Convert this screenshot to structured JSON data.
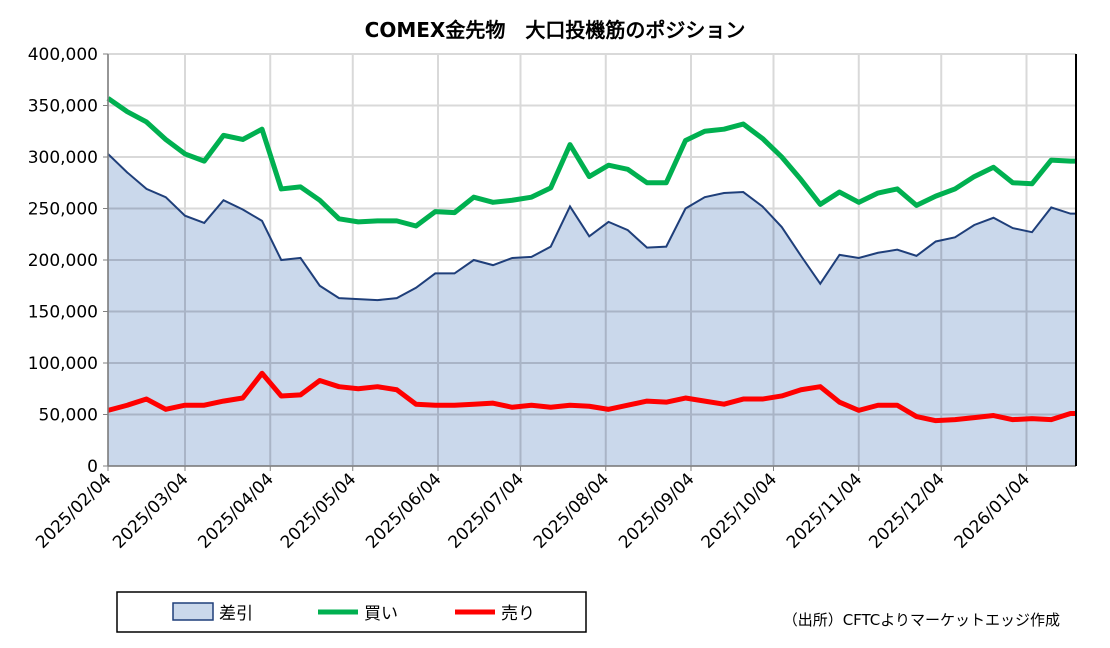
{
  "chart_data": {
    "type": "area",
    "title": "COMEX金先物　大口投機筋のポジション",
    "source_note": "（出所）CFTCよりマーケットエッジ作成",
    "x_start": "2025/02/04",
    "x_step_days": 7,
    "x_ticks": [
      "2025/02/04",
      "2025/03/04",
      "2025/04/04",
      "2025/05/04",
      "2025/06/04",
      "2025/07/04",
      "2025/08/04",
      "2025/09/04",
      "2025/10/04",
      "2025/11/04",
      "2025/12/04",
      "2026/01/04"
    ],
    "y_ticks": [
      "0",
      "50,000",
      "100,000",
      "150,000",
      "200,000",
      "250,000",
      "300,000",
      "350,000",
      "400,000"
    ],
    "ylim": [
      0,
      400000
    ],
    "grid": true,
    "legend_placement": "bottom-left",
    "series": [
      {
        "name": "差引",
        "kind": "area",
        "color": "#1f3f7a",
        "fill": "#cad8eb",
        "values": [
          303000,
          285000,
          269000,
          261000,
          243000,
          236000,
          258000,
          249000,
          238000,
          200000,
          202000,
          175000,
          163000,
          162000,
          161000,
          163000,
          173000,
          187000,
          187000,
          200000,
          195000,
          202000,
          203000,
          213000,
          252000,
          223000,
          237000,
          229000,
          212000,
          213000,
          250000,
          261000,
          265000,
          266000,
          252000,
          232000,
          204000,
          177000,
          205000,
          202000,
          207000,
          210000,
          204000,
          218000,
          222000,
          234000,
          241000,
          231000,
          227000,
          251000,
          245000
        ]
      },
      {
        "name": "買い",
        "kind": "line",
        "color": "#00b050",
        "values": [
          357000,
          344000,
          334000,
          317000,
          303000,
          296000,
          321000,
          317000,
          327000,
          269000,
          271000,
          258000,
          240000,
          237000,
          238000,
          238000,
          233000,
          247000,
          246000,
          261000,
          256000,
          258000,
          261000,
          270000,
          312000,
          281000,
          292000,
          288000,
          275000,
          275000,
          316000,
          325000,
          327000,
          332000,
          318000,
          300000,
          278000,
          254000,
          266000,
          256000,
          265000,
          269000,
          253000,
          262000,
          269000,
          281000,
          290000,
          275000,
          274000,
          297000,
          296000
        ]
      },
      {
        "name": "売り",
        "kind": "line",
        "color": "#ff0000",
        "values": [
          54000,
          59000,
          65000,
          55000,
          59000,
          59000,
          63000,
          66000,
          90000,
          68000,
          69000,
          83000,
          77000,
          75000,
          77000,
          74000,
          60000,
          59000,
          59000,
          60000,
          61000,
          57000,
          59000,
          57000,
          59000,
          58000,
          55000,
          59000,
          63000,
          62000,
          66000,
          63000,
          60000,
          65000,
          65000,
          68000,
          74000,
          77000,
          62000,
          54000,
          59000,
          59000,
          48000,
          44000,
          45000,
          47000,
          49000,
          45000,
          46000,
          45000,
          51000
        ]
      }
    ]
  }
}
